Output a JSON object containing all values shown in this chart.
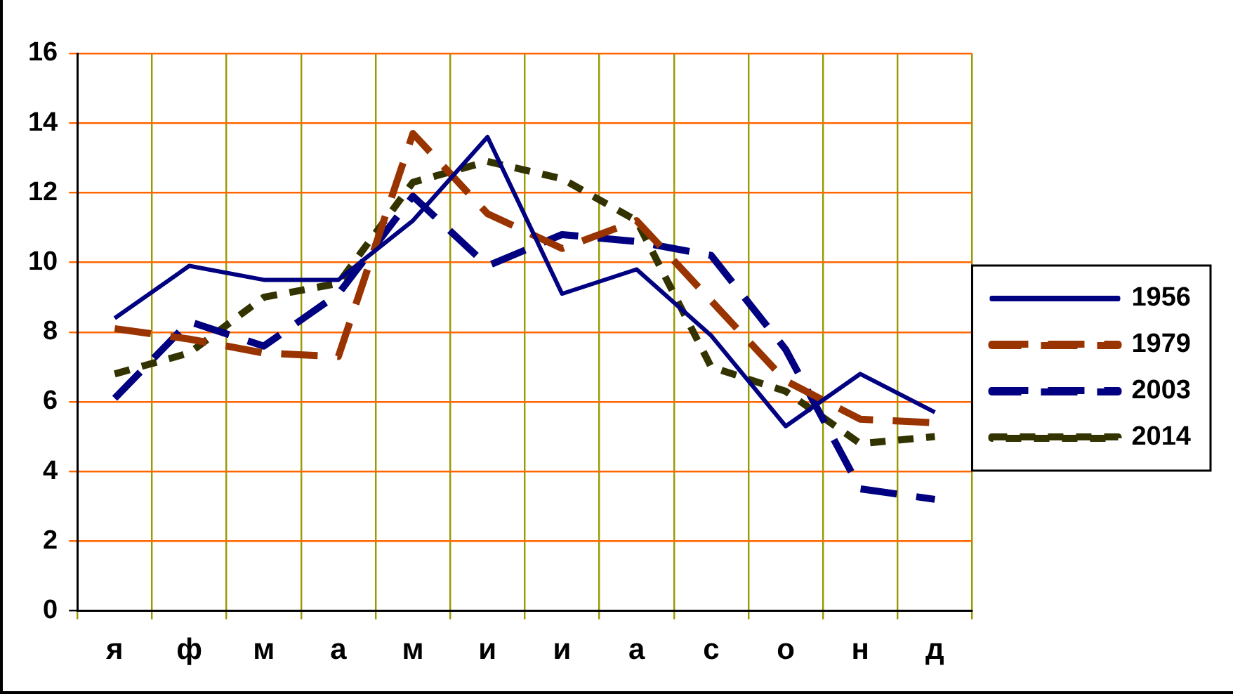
{
  "chart_data": {
    "type": "line",
    "categories": [
      "я",
      "ф",
      "м",
      "а",
      "м",
      "и",
      "и",
      "а",
      "с",
      "о",
      "н",
      "д"
    ],
    "series": [
      {
        "name": "1956",
        "color": "#000080",
        "line_style": "solid",
        "values": [
          8.4,
          9.9,
          9.5,
          9.5,
          11.2,
          13.6,
          9.1,
          9.8,
          7.9,
          5.3,
          6.8,
          5.7
        ]
      },
      {
        "name": "1979",
        "color": "#993300",
        "line_style": "dashed",
        "values": [
          8.1,
          7.8,
          7.4,
          7.3,
          13.7,
          11.4,
          10.4,
          11.2,
          8.9,
          6.6,
          5.5,
          5.4
        ]
      },
      {
        "name": "2003",
        "color": "#000080",
        "line_style": "dashed",
        "values": [
          6.1,
          8.3,
          7.6,
          9.1,
          11.9,
          9.9,
          10.8,
          10.6,
          10.2,
          7.5,
          3.5,
          3.2
        ]
      },
      {
        "name": "2014",
        "color": "#333300",
        "line_style": "dotted",
        "values": [
          6.8,
          7.4,
          9.0,
          9.4,
          12.3,
          12.9,
          12.4,
          11.2,
          7.0,
          6.3,
          4.8,
          5.0
        ]
      }
    ],
    "ylim": [
      0,
      16
    ],
    "yticks": [
      0,
      2,
      4,
      6,
      8,
      10,
      12,
      14,
      16
    ],
    "grid": true,
    "legend": "right",
    "marker": "none"
  }
}
